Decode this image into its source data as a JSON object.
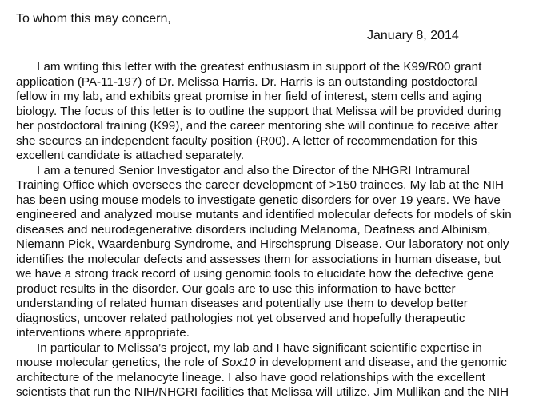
{
  "letter": {
    "salutation": "To whom this may concern,",
    "date": "January 8, 2014",
    "lines": [
      {
        "text": "I am writing this letter with the greatest enthusiasm in support of the K99/R00 grant",
        "indent": true
      },
      {
        "text": "application (PA-11-197) of Dr. Melissa Harris. Dr. Harris is an outstanding postdoctoral",
        "indent": false
      },
      {
        "text": "fellow in my lab, and exhibits great promise in her field of interest, stem cells and aging",
        "indent": false
      },
      {
        "text": "biology. The focus of this letter is to outline the support that Melissa will be provided during",
        "indent": false
      },
      {
        "text": "her postdoctoral training (K99), and the career mentoring she will continue to receive after",
        "indent": false
      },
      {
        "text": "she secures an independent faculty position (R00). A letter of recommendation for this",
        "indent": false
      },
      {
        "text": "excellent candidate is attached separately.",
        "indent": false
      },
      {
        "text": "I am a tenured Senior Investigator and also the Director of the NHGRI Intramural",
        "indent": true
      },
      {
        "text": "Training Office which oversees the career development of >150 trainees.   My lab at the NIH",
        "indent": false
      },
      {
        "text": "has been using mouse models to investigate genetic disorders for over 19 years. We have",
        "indent": false
      },
      {
        "text": "engineered and analyzed mouse mutants and identified molecular defects for models of skin",
        "indent": false
      },
      {
        "text": "diseases and neurodegenerative disorders including Melanoma, Deafness and Albinism,",
        "indent": false
      },
      {
        "text": "Niemann Pick, Waardenburg Syndrome, and Hirschsprung Disease. Our laboratory not only",
        "indent": false
      },
      {
        "text": "identifies the molecular defects and assesses them for associations in human disease, but",
        "indent": false
      },
      {
        "text": "we have a strong track record of using genomic tools to elucidate how the defective gene",
        "indent": false
      },
      {
        "text": "product results in the disorder. Our goals are to use this information to have better",
        "indent": false
      },
      {
        "text": "understanding of related human diseases and potentially use them to develop better",
        "indent": false
      },
      {
        "text": "diagnostics, uncover related pathologies not yet observed and hopefully therapeutic",
        "indent": false
      },
      {
        "text": "interventions where appropriate.",
        "indent": false
      },
      {
        "text": "In particular to Melissa’s project, my lab and I have significant scientific expertise in",
        "indent": true
      },
      {
        "pre": "mouse molecular genetics, the role of ",
        "italic": "Sox10",
        "post": " in development and disease, and the genomic",
        "indent": false
      },
      {
        "text": "architecture of the melanocyte lineage. I also have good relationships with the excellent",
        "indent": false
      },
      {
        "text": "scientists that run the NIH/NHGRI facilities that Melissa will utilize. Jim Mullikan and the NIH",
        "indent": false
      }
    ]
  }
}
